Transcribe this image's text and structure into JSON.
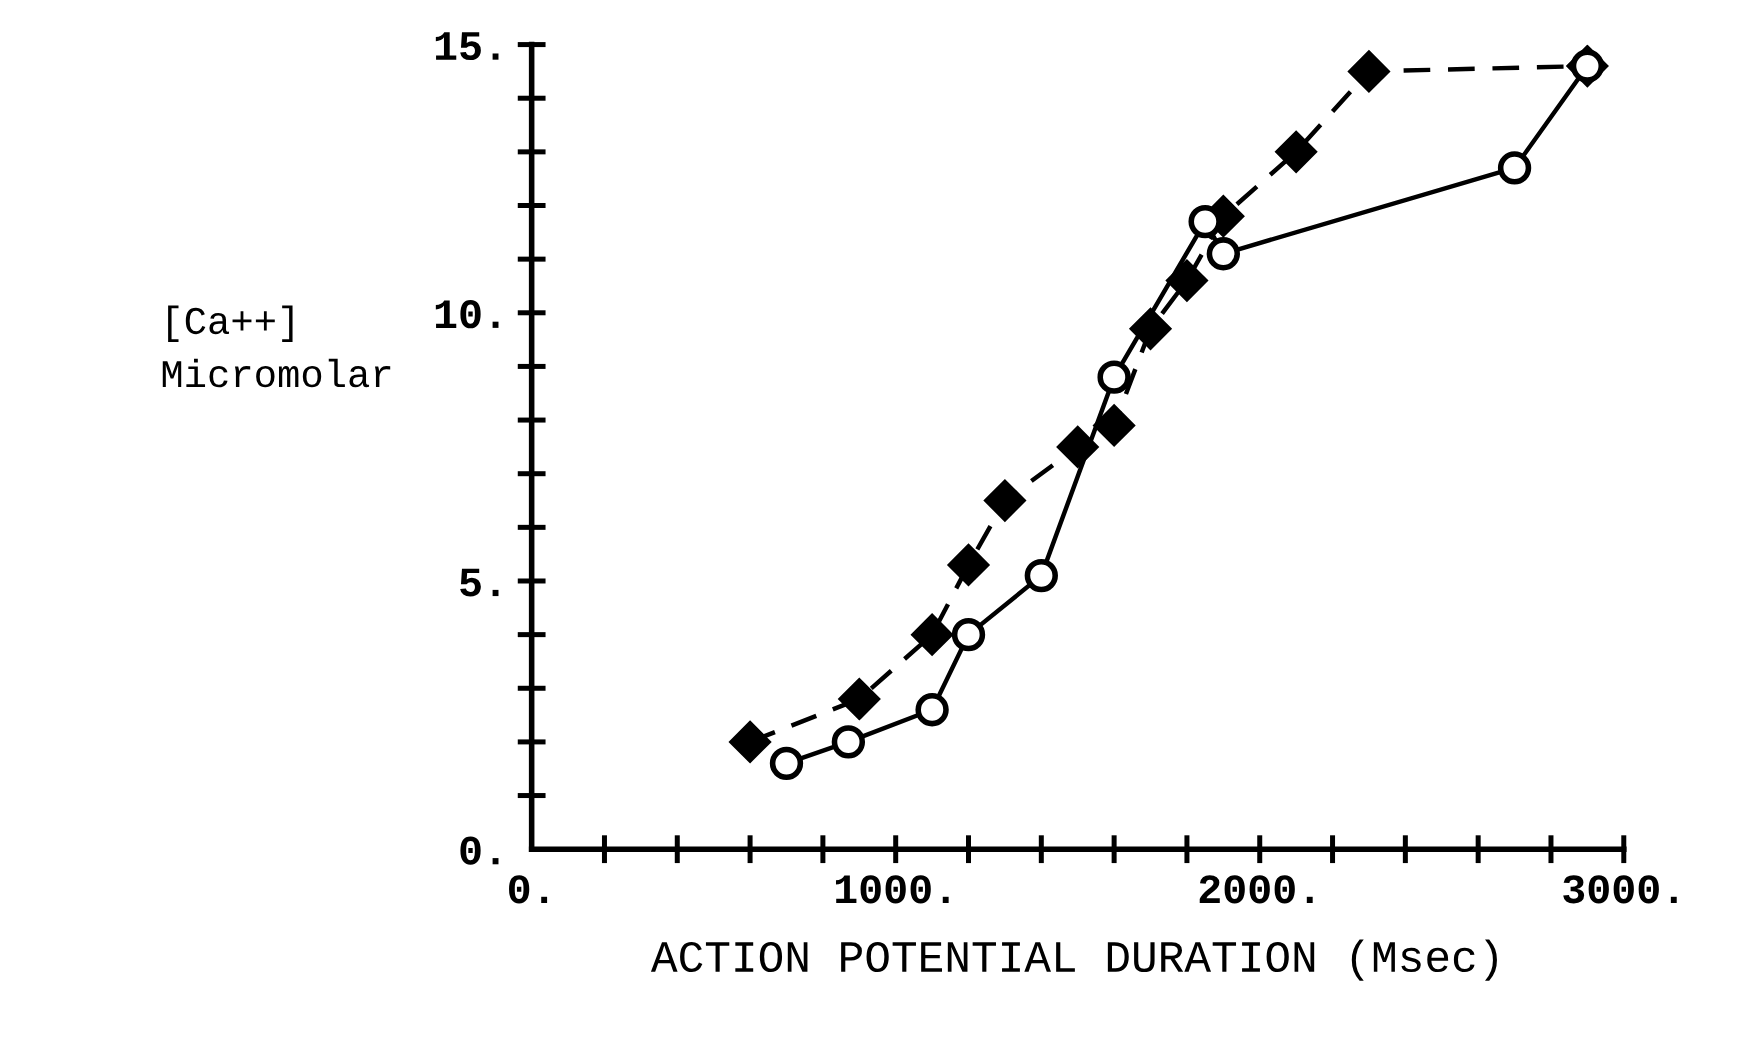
{
  "chart_data": {
    "type": "line",
    "xlabel": "ACTION POTENTIAL DURATION (Msec)",
    "ylabel": "[Ca++]\nMicromolar",
    "xlim": [
      0,
      3000
    ],
    "ylim": [
      0,
      15
    ],
    "xticks": [
      {
        "value": 0,
        "label": "0."
      },
      {
        "value": 200,
        "label": null
      },
      {
        "value": 400,
        "label": null
      },
      {
        "value": 600,
        "label": null
      },
      {
        "value": 800,
        "label": null
      },
      {
        "value": 1000,
        "label": "1000."
      },
      {
        "value": 1200,
        "label": null
      },
      {
        "value": 1400,
        "label": null
      },
      {
        "value": 1600,
        "label": null
      },
      {
        "value": 1800,
        "label": null
      },
      {
        "value": 2000,
        "label": "2000."
      },
      {
        "value": 2200,
        "label": null
      },
      {
        "value": 2400,
        "label": null
      },
      {
        "value": 2600,
        "label": null
      },
      {
        "value": 2800,
        "label": null
      },
      {
        "value": 3000,
        "label": "3000."
      }
    ],
    "yticks": [
      {
        "value": 0,
        "label": "0."
      },
      {
        "value": 1,
        "label": null
      },
      {
        "value": 2,
        "label": null
      },
      {
        "value": 3,
        "label": null
      },
      {
        "value": 4,
        "label": null
      },
      {
        "value": 5,
        "label": "5."
      },
      {
        "value": 6,
        "label": null
      },
      {
        "value": 7,
        "label": null
      },
      {
        "value": 8,
        "label": null
      },
      {
        "value": 9,
        "label": null
      },
      {
        "value": 10,
        "label": "10."
      },
      {
        "value": 11,
        "label": null
      },
      {
        "value": 12,
        "label": null
      },
      {
        "value": 13,
        "label": null
      },
      {
        "value": 14,
        "label": null
      },
      {
        "value": 15,
        "label": "15."
      }
    ],
    "grid": false,
    "series": [
      {
        "color": "#000000",
        "marker": "diamond",
        "line_style": "dashed",
        "x": [
          600,
          900,
          1100,
          1200,
          1300,
          1500,
          1600,
          1700,
          1800,
          1900,
          2100,
          2300,
          2900
        ],
        "values": [
          2.0,
          2.8,
          4.0,
          5.3,
          6.5,
          7.5,
          7.9,
          9.7,
          10.6,
          11.8,
          13.0,
          14.5,
          14.6
        ]
      },
      {
        "color": "#000000",
        "marker": "circle",
        "line_style": "solid",
        "x": [
          700,
          870,
          1100,
          1200,
          1400,
          1600,
          1850,
          1900,
          2700,
          2900
        ],
        "values": [
          1.6,
          2.0,
          2.6,
          4.0,
          5.1,
          8.8,
          11.7,
          11.1,
          12.7,
          14.6
        ]
      }
    ]
  }
}
